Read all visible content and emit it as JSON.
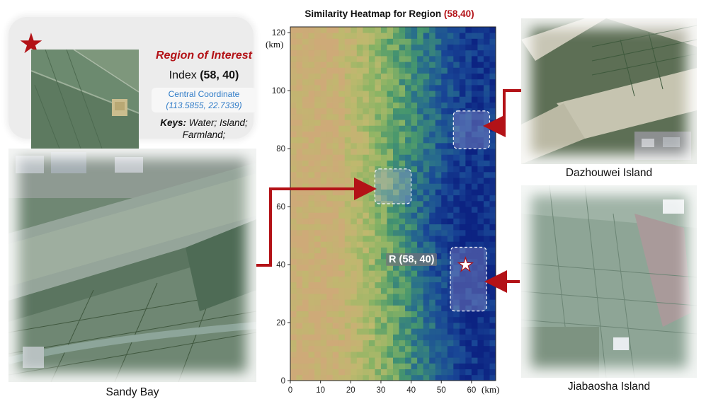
{
  "roi": {
    "title": "Region of Interest",
    "index_label": "Index",
    "index_value": "(58, 40)",
    "coord_label": "Central Coordinate",
    "coord_value": "(113.5855, 22.7339)",
    "keys_label": "Keys:",
    "keys_value": "Water; Island; Farmland;",
    "star_icon": "star-icon"
  },
  "heatmap": {
    "title_prefix": "Similarity Heatmap for Region",
    "title_highlight": "(58,40)",
    "x_unit": "(km)",
    "y_unit": "(km)",
    "region_label": "R (58, 40)"
  },
  "photos": {
    "sandy_bay": "Sandy Bay",
    "dazhouwei": "Dazhouwei Island",
    "jiabaosha": "Jiabaosha Island"
  },
  "chart_data": {
    "type": "heatmap",
    "title": "Similarity Heatmap for Region (58,40)",
    "xlabel": "(km)",
    "ylabel": "(km)",
    "xlim": [
      0,
      68
    ],
    "ylim": [
      0,
      122
    ],
    "x_ticks": [
      0,
      10,
      20,
      30,
      40,
      50,
      60
    ],
    "y_ticks": [
      0,
      20,
      40,
      60,
      80,
      100,
      120
    ],
    "reference_point": {
      "label": "R (58, 40)",
      "x": 58,
      "y": 40
    },
    "highlight_regions": [
      {
        "x": [
          28,
          40
        ],
        "y": [
          61,
          73
        ]
      },
      {
        "x": [
          54,
          66
        ],
        "y": [
          80,
          93
        ]
      },
      {
        "x": [
          53,
          65
        ],
        "y": [
          24,
          46
        ]
      }
    ],
    "colormap": "gist_earth",
    "trend": "high similarity (dark blue) in east x>50, low similarity (tan/yellow) in west x<20"
  },
  "colors": {
    "accent_red": "#b31217",
    "coord_blue": "#2f7bc7"
  }
}
